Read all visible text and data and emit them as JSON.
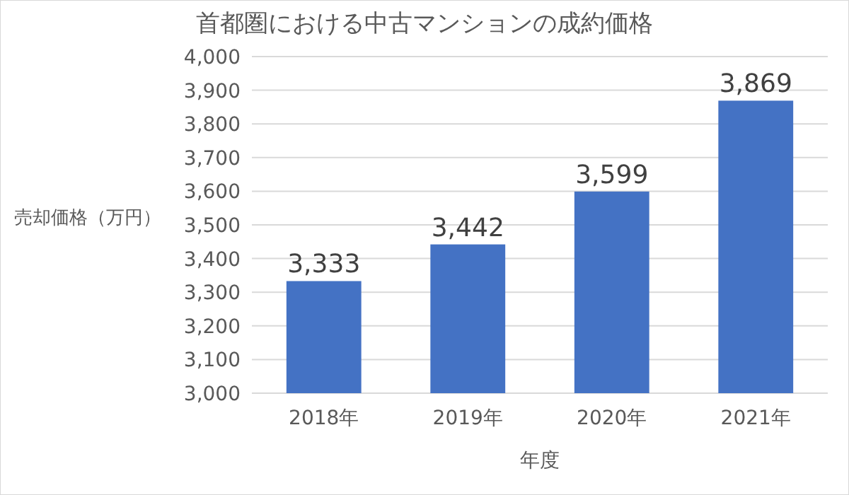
{
  "chart_data": {
    "type": "bar",
    "title": "首都圏における中古マンションの成約価格",
    "xlabel": "年度",
    "ylabel": "売却価格（万円）",
    "categories": [
      "2018年",
      "2019年",
      "2020年",
      "2021年"
    ],
    "values": [
      3333,
      3442,
      3599,
      3869
    ],
    "value_labels": [
      "3,333",
      "3,442",
      "3,599",
      "3,869"
    ],
    "color": "#4472c4",
    "ylim": [
      3000,
      4000
    ],
    "yticks": [
      {
        "value": 3000,
        "label": "3,000"
      },
      {
        "value": 3100,
        "label": "3,100"
      },
      {
        "value": 3200,
        "label": "3,200"
      },
      {
        "value": 3300,
        "label": "3,300"
      },
      {
        "value": 3400,
        "label": "3,400"
      },
      {
        "value": 3500,
        "label": "3,500"
      },
      {
        "value": 3600,
        "label": "3,600"
      },
      {
        "value": 3700,
        "label": "3,700"
      },
      {
        "value": 3800,
        "label": "3,800"
      },
      {
        "value": 3900,
        "label": "3,900"
      },
      {
        "value": 4000,
        "label": "4,000"
      }
    ],
    "grid": "y"
  }
}
